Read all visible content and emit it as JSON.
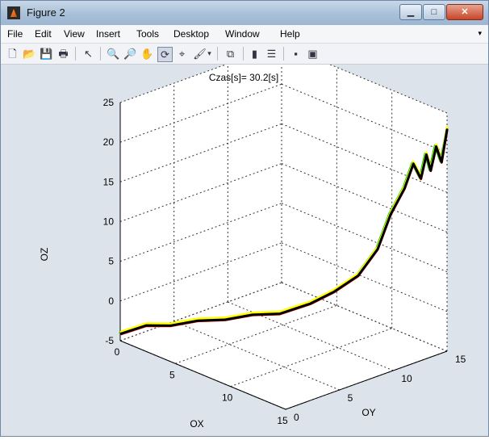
{
  "window": {
    "title": "Figure 2",
    "icon": "matlab-logo-icon"
  },
  "window_controls": {
    "minimize": "▁",
    "maximize": "□",
    "close": "✕"
  },
  "menubar": {
    "items": [
      "File",
      "Edit",
      "View",
      "Insert",
      "Tools",
      "Desktop",
      "Window",
      "Help"
    ],
    "overflow_arrow": "▾"
  },
  "toolbar": {
    "buttons": [
      {
        "name": "new-figure-icon",
        "glyph": "🗋"
      },
      {
        "name": "open-file-icon",
        "glyph": "📂"
      },
      {
        "name": "save-figure-icon",
        "glyph": "💾"
      },
      {
        "name": "print-figure-icon",
        "glyph": "🖶"
      },
      {
        "name": "edit-plot-icon",
        "glyph": "↖"
      },
      {
        "name": "zoom-in-icon",
        "glyph": "🔍"
      },
      {
        "name": "zoom-out-icon",
        "glyph": "🔎"
      },
      {
        "name": "pan-icon",
        "glyph": "✋"
      },
      {
        "name": "rotate-3d-icon",
        "glyph": "⟳"
      },
      {
        "name": "data-cursor-icon",
        "glyph": "⌖"
      },
      {
        "name": "brush-icon",
        "glyph": "🖌"
      },
      {
        "name": "brush-dropdown-icon",
        "glyph": "▾"
      },
      {
        "name": "link-plot-icon",
        "glyph": "⧉"
      },
      {
        "name": "insert-colorbar-icon",
        "glyph": "▮"
      },
      {
        "name": "insert-legend-icon",
        "glyph": "☰"
      },
      {
        "name": "hide-plot-tools-icon",
        "glyph": "▪"
      },
      {
        "name": "show-plot-tools-icon",
        "glyph": "▣"
      }
    ]
  },
  "chart_data": {
    "type": "line",
    "title": "Czas[s]= 30.2[s]",
    "xlabel": "OX",
    "ylabel": "OY",
    "zlabel": "OZ",
    "xlim": [
      0,
      15
    ],
    "ylim": [
      0,
      15
    ],
    "zlim": [
      -5,
      25
    ],
    "xticks": [
      0,
      5,
      10,
      15
    ],
    "yticks": [
      0,
      5,
      10,
      15
    ],
    "zticks": [
      -5,
      0,
      5,
      10,
      15,
      20,
      25
    ],
    "grid": true,
    "series": [
      {
        "color": "#00cc00",
        "x": [
          0,
          1.5,
          3,
          4.5,
          6,
          7.5,
          9,
          10.5,
          11.5,
          12.5,
          13,
          13.2,
          13.5,
          13.8,
          14,
          14.2,
          14.4,
          14.6,
          14.8,
          15
        ],
        "y": [
          0,
          0.8,
          1.5,
          2.5,
          3.5,
          4.5,
          5.5,
          6.8,
          8,
          9.2,
          10.5,
          11.5,
          12.5,
          13,
          13.5,
          13.8,
          14,
          14.3,
          14.6,
          15
        ],
        "z": [
          -4,
          -2.5,
          -2,
          -1,
          -0.5,
          0.5,
          1,
          2.5,
          4,
          6,
          9,
          13,
          16,
          19,
          17,
          20,
          18,
          21,
          19,
          23
        ]
      },
      {
        "color": "#ffff00",
        "x": [
          0.1,
          1.6,
          3.1,
          4.6,
          6.1,
          7.6,
          9.1,
          10.6,
          11.6,
          12.6,
          13.1,
          13.3,
          13.6,
          13.9,
          14.1,
          14.3,
          14.5,
          14.7,
          14.9,
          15
        ],
        "y": [
          0,
          0.8,
          1.5,
          2.5,
          3.5,
          4.5,
          5.5,
          6.8,
          8,
          9.2,
          10.5,
          11.5,
          12.5,
          13,
          13.5,
          13.8,
          14,
          14.3,
          14.6,
          15
        ],
        "z": [
          -3.8,
          -2.3,
          -1.8,
          -0.8,
          -0.3,
          0.7,
          1.2,
          2.7,
          4.2,
          6.2,
          9.2,
          13.2,
          16.2,
          19.2,
          17.2,
          20.2,
          18.2,
          21.2,
          19.2,
          23.2
        ]
      },
      {
        "color": "#ff0000",
        "x": [
          0,
          1.5,
          3,
          4.5,
          6,
          7.5,
          9,
          10.5,
          11.5,
          12.5,
          13,
          13.2,
          13.5,
          13.8,
          14,
          14.2,
          14.4,
          14.6,
          14.8,
          15
        ],
        "y": [
          0.1,
          0.9,
          1.6,
          2.6,
          3.6,
          4.6,
          5.6,
          6.9,
          8.1,
          9.3,
          10.6,
          11.6,
          12.6,
          13.1,
          13.6,
          13.9,
          14.1,
          14.4,
          14.7,
          15
        ],
        "z": [
          -4.2,
          -2.7,
          -2.2,
          -1.2,
          -0.7,
          0.3,
          0.8,
          2.3,
          3.8,
          5.8,
          8.8,
          12.8,
          15.8,
          18.8,
          16.8,
          19.8,
          17.8,
          20.8,
          18.8,
          22.8
        ]
      },
      {
        "color": "#000000",
        "x": [
          0.05,
          1.55,
          3.05,
          4.55,
          6.05,
          7.55,
          9.05,
          10.55,
          11.55,
          12.55,
          13.05,
          13.25,
          13.55,
          13.85,
          14.05,
          14.25,
          14.45,
          14.65,
          14.85,
          15
        ],
        "y": [
          0.05,
          0.85,
          1.55,
          2.55,
          3.55,
          4.55,
          5.55,
          6.85,
          8.05,
          9.25,
          10.55,
          11.55,
          12.55,
          13.05,
          13.55,
          13.85,
          14.05,
          14.35,
          14.65,
          15
        ],
        "z": [
          -4.1,
          -2.6,
          -2.1,
          -1.1,
          -0.6,
          0.4,
          0.9,
          2.4,
          3.9,
          5.9,
          8.9,
          12.9,
          15.9,
          18.9,
          16.9,
          19.9,
          17.9,
          20.9,
          18.9,
          22.9
        ]
      }
    ]
  }
}
